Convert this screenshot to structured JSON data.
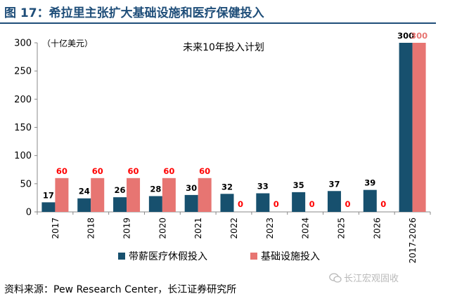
{
  "figure_title": "图 17：希拉里主张扩大基础设施和医疗保健投入",
  "source": "资料来源：Pew Research Center，长江证券研究所",
  "watermark": "长江宏观固收",
  "colors": {
    "title": "#1f4e79",
    "series1": "#17506e",
    "series2": "#e77572",
    "zero_label": "#ff0000",
    "axis": "#888888"
  },
  "chart_data": {
    "type": "bar",
    "title": "未来10年投入计划",
    "unit_label": "（十亿美元）",
    "categories": [
      "2017",
      "2018",
      "2019",
      "2020",
      "2021",
      "2022",
      "2023",
      "2024",
      "2025",
      "2026",
      "2017-2026"
    ],
    "ylim": [
      0,
      300
    ],
    "yticks": [
      0,
      50,
      100,
      150,
      200,
      250,
      300
    ],
    "grid": false,
    "legend_position": "bottom",
    "series": [
      {
        "name": "带薪医疗休假投入",
        "values": [
          17,
          24,
          26,
          28,
          30,
          32,
          33,
          35,
          37,
          39,
          300
        ]
      },
      {
        "name": "基础设施投入",
        "values": [
          60,
          60,
          60,
          60,
          60,
          0,
          0,
          0,
          0,
          0,
          300
        ]
      }
    ]
  }
}
